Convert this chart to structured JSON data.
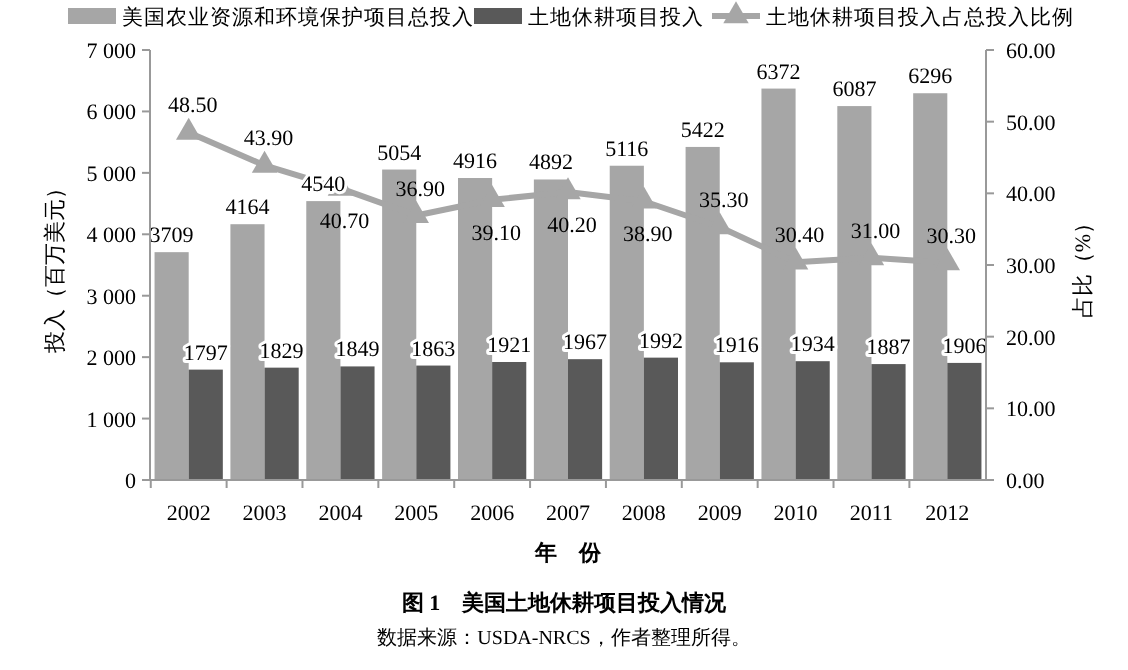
{
  "chart_data": {
    "type": "bar",
    "title": "图 1　美国土地休耕项目投入情况",
    "xlabel": "年　份",
    "ylabel": "投入（百万美元）",
    "y2label": "占比（%）",
    "annotations": [
      "数据来源：USDA-NRCS，作者整理所得。"
    ],
    "categories": [
      "2002",
      "2003",
      "2004",
      "2005",
      "2006",
      "2007",
      "2008",
      "2009",
      "2010",
      "2011",
      "2012"
    ],
    "series": [
      {
        "name": "美国农业资源和环境保护项目总投入",
        "color": "#a6a6a6",
        "values": [
          3709,
          4164,
          4540,
          5054,
          4916,
          4892,
          5116,
          5422,
          6372,
          6087,
          6296
        ],
        "value_labels": [
          "3709",
          "4164",
          "4540",
          "5054",
          "4916",
          "4892",
          "5116",
          "5422",
          "6372",
          "6087",
          "6296"
        ]
      },
      {
        "name": "土地休耕项目投入",
        "color": "#595959",
        "values": [
          1797,
          1829,
          1849,
          1863,
          1921,
          1967,
          1992,
          1916,
          1934,
          1887,
          1906
        ],
        "value_labels": [
          "1797",
          "1829",
          "1849",
          "1863",
          "1921",
          "1967",
          "1992",
          "1916",
          "1934",
          "1887",
          "1906"
        ]
      },
      {
        "name": "土地休耕项目投入占总投入比例",
        "type": "line",
        "axis": "y2",
        "color": "#a6a6a6",
        "marker": "triangle",
        "values": [
          48.5,
          43.9,
          40.7,
          36.9,
          39.1,
          40.2,
          38.9,
          35.3,
          30.4,
          31.0,
          30.3
        ],
        "value_labels": [
          "48.50",
          "43.90",
          "40.70",
          "36.90",
          "39.10",
          "40.20",
          "38.90",
          "35.30",
          "30.40",
          "31.00",
          "30.30"
        ]
      }
    ],
    "ylim": [
      0,
      7000
    ],
    "yticks": [
      {
        "value": 0,
        "label": "0"
      },
      {
        "value": 1000,
        "label": "1 000"
      },
      {
        "value": 2000,
        "label": "2 000"
      },
      {
        "value": 3000,
        "label": "3 000"
      },
      {
        "value": 4000,
        "label": "4 000"
      },
      {
        "value": 5000,
        "label": "5 000"
      },
      {
        "value": 6000,
        "label": "6 000"
      },
      {
        "value": 7000,
        "label": "7 000"
      }
    ],
    "y2lim": [
      0,
      60
    ],
    "y2ticks": [
      {
        "value": 0,
        "label": "0.00"
      },
      {
        "value": 10,
        "label": "10.00"
      },
      {
        "value": 20,
        "label": "20.00"
      },
      {
        "value": 30,
        "label": "30.00"
      },
      {
        "value": 40,
        "label": "40.00"
      },
      {
        "value": 50,
        "label": "50.00"
      },
      {
        "value": 60,
        "label": "60.00"
      }
    ],
    "legend": "top",
    "grid": false
  }
}
